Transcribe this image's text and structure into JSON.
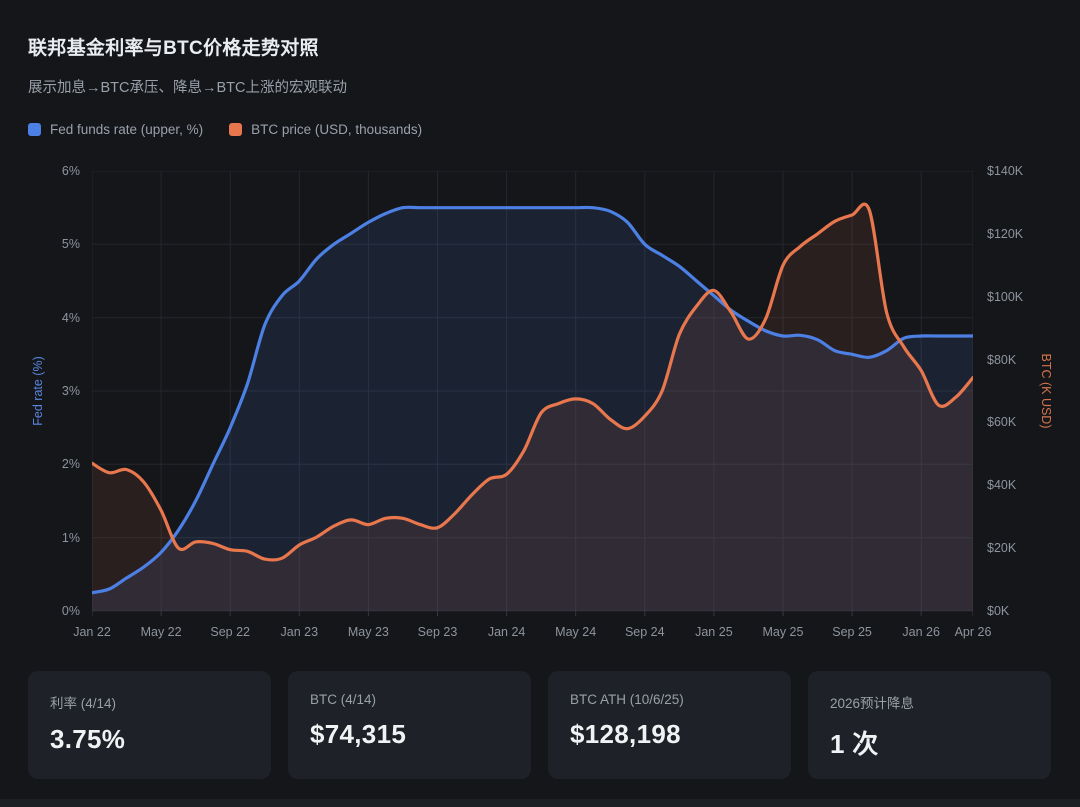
{
  "header": {
    "title": "联邦基金利率与BTC价格走势对照",
    "subtitle": "展示加息→BTC承压、降息→BTC上涨的宏观联动"
  },
  "colors": {
    "background": "#14161a",
    "card_background": "#1e2127",
    "grid": "#24272d",
    "text_primary": "#e9ecf0",
    "text_secondary": "#99a0aa",
    "fed_blue": "#4d80e4",
    "btc_orange": "#e8774e"
  },
  "chart_data": {
    "type": "line",
    "title": "联邦基金利率与BTC价格走势对照",
    "x_start": "Jan 22",
    "x_end": "Apr 26",
    "x_unit": "month",
    "x_tick_labels": [
      "Jan 22",
      "May 22",
      "Sep 22",
      "Jan 23",
      "May 23",
      "Sep 23",
      "Jan 24",
      "May 24",
      "Sep 24",
      "Jan 25",
      "May 25",
      "Sep 25",
      "Jan 26",
      "Apr 26"
    ],
    "x_tick_month_index": [
      0,
      4,
      8,
      12,
      16,
      20,
      24,
      28,
      32,
      36,
      40,
      44,
      48,
      51
    ],
    "grid": true,
    "legend_position": "top-left",
    "left_axis": {
      "label": "Fed rate (%)",
      "color": "#5b86e0",
      "min": 0,
      "max": 6,
      "tick_values": [
        6,
        5,
        4,
        3,
        2,
        1,
        0
      ],
      "tick_labels": [
        "6%",
        "5%",
        "4%",
        "3%",
        "2%",
        "1%",
        "0%"
      ]
    },
    "right_axis": {
      "label": "BTC (K USD)",
      "color": "#d4744c",
      "min": 0,
      "max": 140,
      "tick_values": [
        140,
        120,
        100,
        80,
        60,
        40,
        20,
        0
      ],
      "tick_labels": [
        "$140K",
        "$120K",
        "$100K",
        "$80K",
        "$60K",
        "$40K",
        "$20K",
        "$0K"
      ]
    },
    "series": [
      {
        "name": "Fed funds rate (upper, %)",
        "axis": "left",
        "color": "#4d80e4",
        "fill": "rgba(77,127,227,0.13)",
        "values": [
          0.25,
          0.3,
          0.45,
          0.6,
          0.8,
          1.1,
          1.5,
          2.0,
          2.5,
          3.1,
          3.9,
          4.3,
          4.5,
          4.8,
          5.0,
          5.15,
          5.3,
          5.42,
          5.5,
          5.5,
          5.5,
          5.5,
          5.5,
          5.5,
          5.5,
          5.5,
          5.5,
          5.5,
          5.5,
          5.5,
          5.45,
          5.3,
          5.0,
          4.85,
          4.7,
          4.5,
          4.3,
          4.1,
          3.95,
          3.82,
          3.75,
          3.76,
          3.7,
          3.55,
          3.5,
          3.46,
          3.55,
          3.72,
          3.75,
          3.75,
          3.75,
          3.75
        ]
      },
      {
        "name": "BTC price (USD, thousands)",
        "axis": "right",
        "color": "#e8774e",
        "fill": "rgba(232,118,77,0.10)",
        "values": [
          47,
          44,
          45,
          41,
          32,
          20,
          22,
          21.5,
          19.5,
          19,
          16.5,
          16.8,
          21,
          23.5,
          27,
          29,
          27.5,
          29.5,
          29.5,
          27.5,
          26.5,
          31,
          37,
          42,
          43.5,
          51,
          63,
          66,
          67.5,
          66,
          61,
          58,
          62,
          70,
          88,
          97,
          102,
          95,
          86.5,
          93,
          110,
          116,
          120,
          124,
          126,
          127.5,
          95,
          84,
          76.5,
          65.5,
          68,
          74.3
        ]
      }
    ]
  },
  "cards": [
    {
      "label": "利率 (4/14)",
      "value": "3.75%"
    },
    {
      "label": "BTC (4/14)",
      "value": "$74,315"
    },
    {
      "label": "BTC ATH (10/6/25)",
      "value": "$128,198"
    },
    {
      "label": "2026预计降息",
      "value": "1 次"
    }
  ]
}
